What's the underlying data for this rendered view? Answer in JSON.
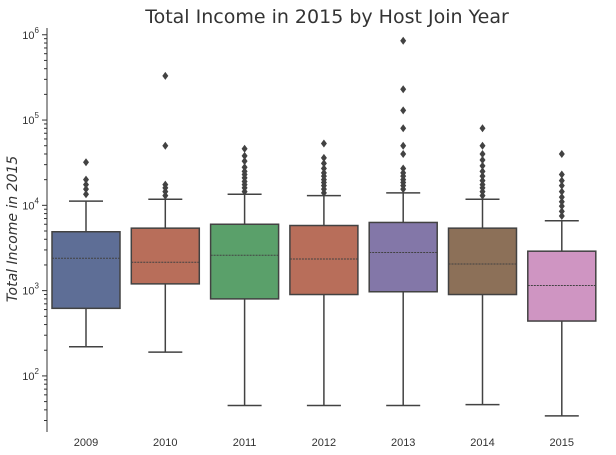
{
  "chart_data": {
    "type": "box",
    "title": "Total Income in 2015 by Host Join Year",
    "xlabel": "",
    "ylabel": "Total Income in 2015",
    "yscale": "log",
    "ylim": [
      22,
      1200000
    ],
    "y_ticks": [
      100,
      1000,
      10000,
      100000,
      1000000
    ],
    "y_tick_labels": [
      {
        "base": "10",
        "exp": "2"
      },
      {
        "base": "10",
        "exp": "3"
      },
      {
        "base": "10",
        "exp": "4"
      },
      {
        "base": "10",
        "exp": "5"
      },
      {
        "base": "10",
        "exp": "6"
      }
    ],
    "categories": [
      "2009",
      "2010",
      "2011",
      "2012",
      "2013",
      "2014",
      "2015"
    ],
    "boxes": [
      {
        "category": "2009",
        "color": "#5e6e96",
        "whisker_low": 220,
        "q1": 620,
        "median": 2400,
        "q3": 4900,
        "whisker_high": 11200,
        "outliers": [
          13500,
          15500,
          17500,
          20000,
          32000
        ]
      },
      {
        "category": "2010",
        "color": "#b86e5a",
        "whisker_low": 190,
        "q1": 1200,
        "median": 2150,
        "q3": 5400,
        "whisker_high": 11800,
        "outliers": [
          13000,
          14500,
          16000,
          17500,
          50000,
          330000
        ]
      },
      {
        "category": "2011",
        "color": "#5aa06a",
        "whisker_low": 45,
        "q1": 800,
        "median": 2600,
        "q3": 6000,
        "whisker_high": 13500,
        "outliers": [
          14500,
          16000,
          17500,
          19000,
          21000,
          23000,
          25000,
          28000,
          33000,
          38000,
          46000
        ]
      },
      {
        "category": "2012",
        "color": "#b86e5a",
        "whisker_low": 45,
        "q1": 900,
        "median": 2350,
        "q3": 5800,
        "whisker_high": 13000,
        "outliers": [
          14000,
          15500,
          17000,
          18500,
          20000,
          22000,
          24000,
          27000,
          31000,
          36000,
          53000
        ]
      },
      {
        "category": "2013",
        "color": "#8377a8",
        "whisker_low": 45,
        "q1": 970,
        "median": 2800,
        "q3": 6300,
        "whisker_high": 14000,
        "outliers": [
          15500,
          17000,
          18500,
          20000,
          22000,
          24000,
          27000,
          40000,
          50000,
          80000,
          130000,
          230000,
          850000
        ]
      },
      {
        "category": "2014",
        "color": "#8c7058",
        "whisker_low": 46,
        "q1": 900,
        "median": 2050,
        "q3": 5400,
        "whisker_high": 11800,
        "outliers": [
          13000,
          14500,
          16000,
          17500,
          19500,
          22000,
          25000,
          29000,
          34000,
          40000,
          50000,
          80000
        ]
      },
      {
        "category": "2015",
        "color": "#cf95c2",
        "whisker_low": 34,
        "q1": 440,
        "median": 1150,
        "q3": 2900,
        "whisker_high": 6600,
        "outliers": [
          7500,
          8500,
          9800,
          11000,
          12500,
          14500,
          17000,
          19500,
          23000,
          40000
        ]
      }
    ],
    "grid": false,
    "legend": "none"
  }
}
